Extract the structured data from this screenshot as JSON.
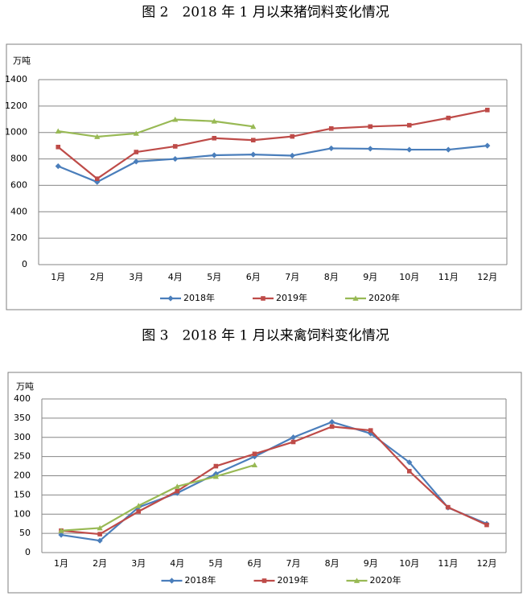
{
  "chart_data": [
    {
      "type": "line",
      "title": "图 2　2018 年 1 月以来猪饲料变化情况",
      "y_label": "万吨",
      "categories": [
        "1月",
        "2月",
        "3月",
        "4月",
        "5月",
        "6月",
        "7月",
        "8月",
        "9月",
        "10月",
        "11月",
        "12月"
      ],
      "ylim": [
        0,
        1400
      ],
      "yticks": [
        0,
        200,
        400,
        600,
        800,
        1000,
        1200,
        1400
      ],
      "grid": true,
      "legend": "bottom",
      "series": [
        {
          "name": "2018年",
          "color": "#4a7ebb",
          "marker": "diamond",
          "values": [
            745,
            625,
            780,
            800,
            828,
            833,
            825,
            880,
            877,
            870,
            870,
            900
          ]
        },
        {
          "name": "2019年",
          "color": "#be4b48",
          "marker": "square",
          "values": [
            890,
            650,
            852,
            895,
            957,
            942,
            970,
            1030,
            1045,
            1055,
            1110,
            1170
          ]
        },
        {
          "name": "2020年",
          "color": "#98b954",
          "marker": "triangle",
          "values": [
            1010,
            968,
            993,
            1098,
            1085,
            1045,
            null,
            null,
            null,
            null,
            null,
            null
          ]
        }
      ]
    },
    {
      "type": "line",
      "title": "图 3　2018 年 1 月以来禽饲料变化情况",
      "y_label": "万吨",
      "categories": [
        "1月",
        "2月",
        "3月",
        "4月",
        "5月",
        "6月",
        "7月",
        "8月",
        "9月",
        "10月",
        "11月",
        "12月"
      ],
      "ylim": [
        0,
        400
      ],
      "yticks": [
        0,
        50,
        100,
        150,
        200,
        250,
        300,
        350,
        400
      ],
      "grid": true,
      "legend": "bottom",
      "series": [
        {
          "name": "2018年",
          "color": "#4a7ebb",
          "marker": "diamond",
          "values": [
            46,
            31,
            118,
            155,
            205,
            250,
            300,
            340,
            310,
            235,
            117,
            75
          ]
        },
        {
          "name": "2019年",
          "color": "#be4b48",
          "marker": "square",
          "values": [
            57,
            48,
            107,
            160,
            225,
            257,
            288,
            328,
            318,
            212,
            118,
            72
          ]
        },
        {
          "name": "2020年",
          "color": "#98b954",
          "marker": "triangle",
          "values": [
            57,
            64,
            122,
            172,
            198,
            228,
            null,
            null,
            null,
            null,
            null,
            null
          ]
        }
      ]
    }
  ]
}
